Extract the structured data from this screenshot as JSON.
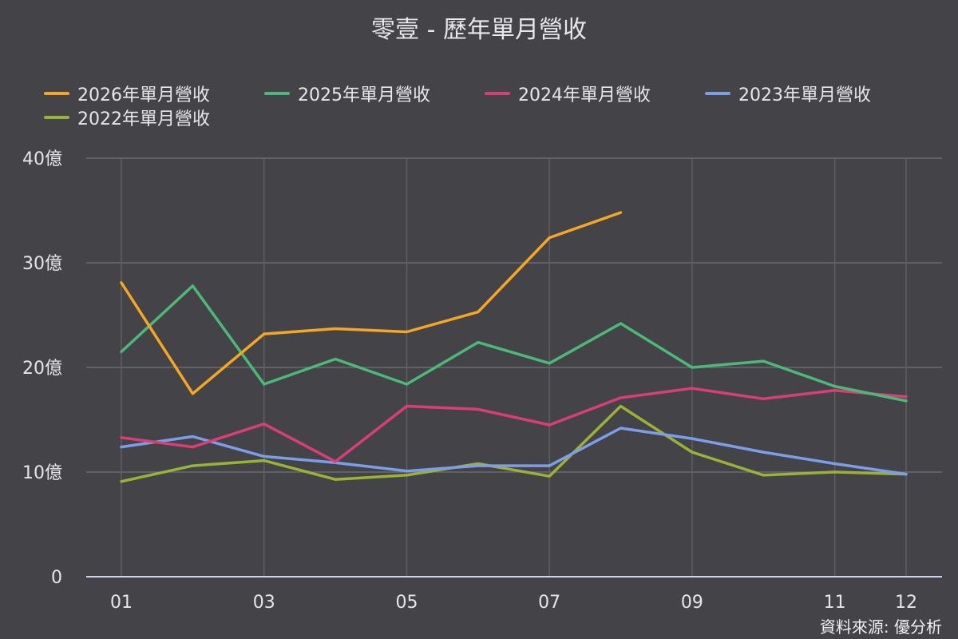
{
  "chart_data": {
    "type": "line",
    "title": "零壹 - 歷年單月營收",
    "xlabel": "",
    "ylabel": "",
    "categories": [
      "01",
      "02",
      "03",
      "04",
      "05",
      "06",
      "07",
      "08",
      "09",
      "10",
      "11",
      "12"
    ],
    "x_tick_labels": [
      "01",
      "03",
      "05",
      "07",
      "09",
      "11",
      "12"
    ],
    "y_tick_labels": [
      "0",
      "10億",
      "20億",
      "30億",
      "40億"
    ],
    "y_ticks": [
      0,
      10,
      20,
      30,
      40
    ],
    "ylim": [
      0,
      40
    ],
    "grid": true,
    "legend_position": "top",
    "series": [
      {
        "name": "2026年單月營收",
        "color": "#f5a623",
        "values": [
          28.1,
          17.5,
          23.2,
          23.7,
          23.4,
          25.3,
          32.4,
          34.8,
          null,
          null,
          null,
          null
        ]
      },
      {
        "name": "2025年單月營收",
        "color": "#4cb87a",
        "values": [
          21.5,
          27.8,
          18.4,
          20.8,
          18.4,
          22.4,
          20.4,
          24.2,
          20.0,
          20.6,
          18.2,
          16.8
        ]
      },
      {
        "name": "2024年單月營收",
        "color": "#d93f74",
        "values": [
          13.3,
          12.4,
          14.6,
          11.0,
          16.3,
          16.0,
          14.5,
          17.1,
          18.0,
          17.0,
          17.8,
          17.2
        ]
      },
      {
        "name": "2023年單月營收",
        "color": "#7c9ee8",
        "values": [
          12.4,
          13.4,
          11.5,
          10.9,
          10.1,
          10.6,
          10.6,
          14.2,
          13.2,
          11.9,
          10.8,
          9.8
        ]
      },
      {
        "name": "2022年單月營收",
        "color": "#9ab236",
        "values": [
          9.1,
          10.6,
          11.1,
          9.3,
          9.7,
          10.8,
          9.6,
          16.3,
          11.9,
          9.7,
          10.0,
          9.8
        ]
      }
    ]
  },
  "source_note": "資料來源: 優分析"
}
